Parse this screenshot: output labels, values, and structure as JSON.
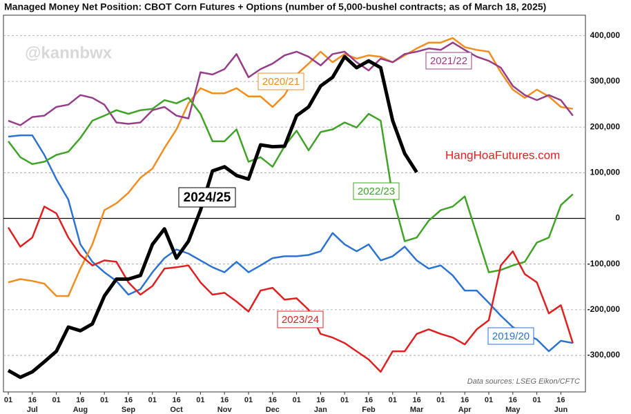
{
  "chart_data": {
    "type": "line",
    "title": "Managed Money Net Position: CBOT Corn Futures + Options (number of 5,000-bushel contracts; as of March 18, 2025)",
    "watermark": "@kannbwx",
    "site": "HangHoaFutures.com",
    "source": "Data sources: LSEG Eikon/CFTC",
    "categories": [
      "01",
      null,
      "16",
      null,
      "01",
      null,
      "16",
      null,
      "01",
      null,
      "16",
      null,
      "01",
      null,
      "16",
      null,
      "01",
      null,
      "16",
      null,
      "01",
      null,
      "16",
      null,
      "01",
      null,
      "16",
      null,
      "01",
      null,
      "16",
      null,
      "01",
      null,
      "16",
      null,
      "01",
      null,
      "16",
      null,
      "01",
      null,
      "16",
      null,
      "01",
      null,
      "16",
      null
    ],
    "months": [
      "Jul",
      "Aug",
      "Sep",
      "Oct",
      "Nov",
      "Dec",
      "Jan",
      "Feb",
      "Mar",
      "Apr",
      "May",
      "Jun"
    ],
    "ylim": [
      -380000,
      445000
    ],
    "yticks": [
      {
        "value": -300000,
        "label": "-300,000"
      },
      {
        "value": -200000,
        "label": "-200,000"
      },
      {
        "value": -100000,
        "label": "-100,000"
      },
      0,
      {
        "value": 100000,
        "label": "100,000"
      },
      {
        "value": 200000,
        "label": "200,000"
      },
      {
        "value": 300000,
        "label": "300,000"
      },
      {
        "value": 400000,
        "label": "400,000"
      }
    ],
    "grid": true,
    "series": [
      {
        "name": "2019/20",
        "color": "#2a73d2",
        "values": [
          179000,
          182000,
          182000,
          139000,
          86000,
          41000,
          -57000,
          -95000,
          -118000,
          -137000,
          -167000,
          -155000,
          -118000,
          -87000,
          -68000,
          -77000,
          -92000,
          -107000,
          -118000,
          -95000,
          -118000,
          -103000,
          -87000,
          -83000,
          -83000,
          -80000,
          -72000,
          -32000,
          -57000,
          -72000,
          -57000,
          -92000,
          -83000,
          -62000,
          -92000,
          -110000,
          -103000,
          -125000,
          -158000,
          -158000,
          -185000,
          -213000,
          -238000,
          -253000,
          -265000,
          -291000,
          -268000,
          -273000
        ]
      },
      {
        "name": "2020/21",
        "color": "#f28c1e",
        "values": [
          -140000,
          -133000,
          -137000,
          -143000,
          -170000,
          -170000,
          -110000,
          -57000,
          18000,
          33000,
          56000,
          89000,
          109000,
          154000,
          195000,
          252000,
          285000,
          274000,
          274000,
          285000,
          267000,
          267000,
          244000,
          270000,
          315000,
          339000,
          365000,
          342000,
          360000,
          350000,
          357000,
          354000,
          342000,
          357000,
          372000,
          385000,
          385000,
          395000,
          375000,
          369000,
          365000,
          320000,
          282000,
          264000,
          282000,
          267000,
          244000,
          240000
        ]
      },
      {
        "name": "2021/22",
        "color": "#973c88",
        "values": [
          214000,
          204000,
          222000,
          225000,
          244000,
          249000,
          270000,
          264000,
          249000,
          210000,
          207000,
          210000,
          237000,
          244000,
          225000,
          219000,
          320000,
          315000,
          327000,
          360000,
          309000,
          327000,
          339000,
          357000,
          365000,
          354000,
          335000,
          360000,
          365000,
          342000,
          324000,
          350000,
          342000,
          360000,
          365000,
          372000,
          369000,
          385000,
          369000,
          354000,
          345000,
          330000,
          290000,
          270000,
          259000,
          270000,
          259000,
          225000
        ]
      },
      {
        "name": "2022/23",
        "color": "#3fa326",
        "values": [
          169000,
          134000,
          119000,
          124000,
          139000,
          146000,
          176000,
          214000,
          225000,
          237000,
          229000,
          237000,
          240000,
          259000,
          252000,
          264000,
          229000,
          169000,
          169000,
          195000,
          124000,
          134000,
          113000,
          158000,
          192000,
          149000,
          189000,
          195000,
          210000,
          199000,
          229000,
          214000,
          48000,
          -50000,
          -42000,
          -5000,
          18000,
          26000,
          48000,
          -35000,
          -118000,
          -113000,
          -103000,
          -95000,
          -53000,
          -42000,
          29000,
          53000
        ]
      },
      {
        "name": "2023/24",
        "color": "#e02020",
        "values": [
          -20000,
          -62000,
          -42000,
          26000,
          11000,
          -42000,
          -80000,
          -103000,
          -92000,
          -95000,
          -140000,
          -167000,
          -148000,
          -110000,
          -107000,
          -103000,
          -140000,
          -167000,
          -163000,
          -182000,
          -204000,
          -158000,
          -152000,
          -178000,
          -175000,
          -200000,
          -253000,
          -261000,
          -273000,
          -291000,
          -309000,
          -336000,
          -291000,
          -291000,
          -253000,
          -243000,
          -253000,
          -261000,
          -276000,
          -243000,
          -223000,
          -103000,
          -72000,
          -122000,
          -140000,
          -208000,
          -190000,
          -273000
        ]
      },
      {
        "name": "2024/25",
        "color": "#000000",
        "values": [
          -333000,
          -348000,
          -336000,
          -314000,
          -291000,
          -238000,
          -246000,
          -231000,
          -170000,
          -133000,
          -133000,
          -125000,
          -57000,
          -23000,
          -87000,
          -50000,
          18000,
          104000,
          113000,
          94000,
          86000,
          161000,
          157000,
          158000,
          225000,
          244000,
          290000,
          309000,
          354000,
          330000,
          345000,
          330000,
          214000,
          142000,
          101000,
          null,
          null,
          null,
          null,
          null,
          null,
          null,
          null,
          null,
          null,
          null,
          null,
          null
        ]
      }
    ]
  }
}
